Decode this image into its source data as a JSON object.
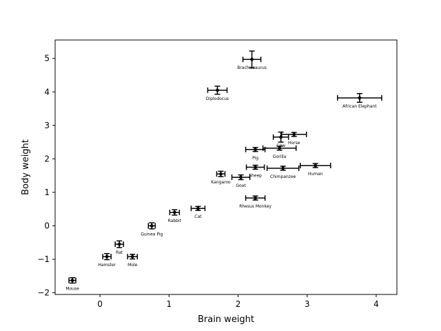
{
  "chart_data": {
    "type": "scatter",
    "title": "",
    "xlabel": "Brain weight",
    "ylabel": "Body weight",
    "xlim": [
      -0.65,
      4.3
    ],
    "ylim": [
      -2.05,
      5.55
    ],
    "xticks": [
      0,
      1,
      2,
      3,
      4
    ],
    "yticks": [
      -2,
      -1,
      0,
      1,
      2,
      3,
      4,
      5
    ],
    "grid": false,
    "legend": "none",
    "marker_color": "#000000",
    "points": [
      {
        "label": "Mouse",
        "x": -0.4,
        "y": -1.63,
        "xerr": 0.05,
        "yerr": 0.08
      },
      {
        "label": "Hamster",
        "x": 0.1,
        "y": -0.92,
        "xerr": 0.06,
        "yerr": 0.09
      },
      {
        "label": "Mole",
        "x": 0.47,
        "y": -0.92,
        "xerr": 0.07,
        "yerr": 0.07
      },
      {
        "label": "Rat",
        "x": 0.28,
        "y": -0.55,
        "xerr": 0.06,
        "yerr": 0.1
      },
      {
        "label": "Guinea Pig",
        "x": 0.75,
        "y": 0.0,
        "xerr": 0.05,
        "yerr": 0.09
      },
      {
        "label": "Rabbit",
        "x": 1.08,
        "y": 0.4,
        "xerr": 0.07,
        "yerr": 0.08
      },
      {
        "label": "Cat",
        "x": 1.42,
        "y": 0.52,
        "xerr": 0.1,
        "yerr": 0.06
      },
      {
        "label": "Kangaroo",
        "x": 1.75,
        "y": 1.55,
        "xerr": 0.06,
        "yerr": 0.08
      },
      {
        "label": "Goat",
        "x": 2.04,
        "y": 1.45,
        "xerr": 0.13,
        "yerr": 0.07
      },
      {
        "label": "Sheep",
        "x": 2.25,
        "y": 1.75,
        "xerr": 0.13,
        "yerr": 0.06
      },
      {
        "label": "Rhesus Monkey",
        "x": 2.25,
        "y": 0.83,
        "xerr": 0.14,
        "yerr": 0.06
      },
      {
        "label": "Pig",
        "x": 2.25,
        "y": 2.28,
        "xerr": 0.14,
        "yerr": 0.06
      },
      {
        "label": "Gorilla",
        "x": 2.6,
        "y": 2.32,
        "xerr": 0.24,
        "yerr": 0.06
      },
      {
        "label": "Chimpanzee",
        "x": 2.65,
        "y": 1.72,
        "xerr": 0.23,
        "yerr": 0.06
      },
      {
        "label": "Cow",
        "x": 2.62,
        "y": 2.65,
        "xerr": 0.11,
        "yerr": 0.15
      },
      {
        "label": "Horse",
        "x": 2.81,
        "y": 2.73,
        "xerr": 0.18,
        "yerr": 0.06
      },
      {
        "label": "Human",
        "x": 3.12,
        "y": 1.8,
        "xerr": 0.22,
        "yerr": 0.06
      },
      {
        "label": "African Elephant",
        "x": 3.76,
        "y": 3.82,
        "xerr": 0.32,
        "yerr": 0.13
      },
      {
        "label": "Diplodocus",
        "x": 1.7,
        "y": 4.05,
        "xerr": 0.14,
        "yerr": 0.12
      },
      {
        "label": "Brachiosaurus",
        "x": 2.2,
        "y": 4.97,
        "xerr": 0.13,
        "yerr": 0.25
      }
    ]
  }
}
